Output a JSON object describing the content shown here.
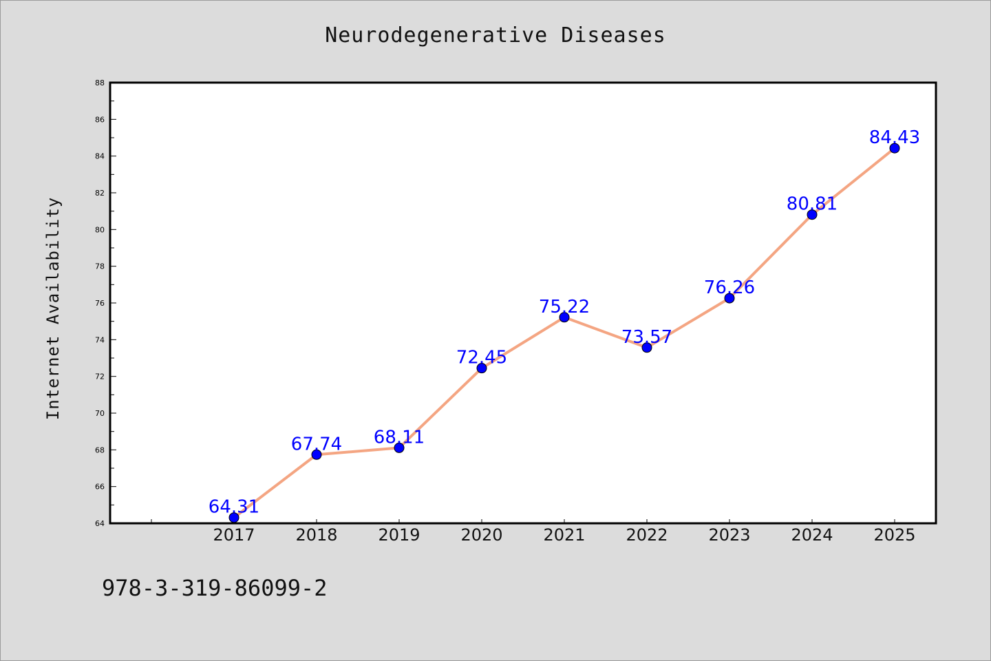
{
  "chart_data": {
    "type": "line",
    "title": "Neurodegenerative Diseases",
    "xlabel": "",
    "ylabel": "Internet Availability",
    "categories": [
      "2017",
      "2018",
      "2019",
      "2020",
      "2021",
      "2022",
      "2023",
      "2024",
      "2025"
    ],
    "series": [
      {
        "values": [
          64.31,
          67.74,
          68.11,
          72.45,
          75.22,
          73.57,
          76.26,
          80.81,
          84.43
        ],
        "labels": [
          "64.31",
          "67.74",
          "68.11",
          "72.45",
          "75.22",
          "73.57",
          "76.26",
          "80.81",
          "84.43"
        ],
        "line_color": "#f4a582",
        "marker_color": "#0000ff",
        "label_color": "#0000ff"
      }
    ],
    "ylim": [
      64,
      88
    ],
    "yticks": [
      "64",
      "66",
      "68",
      "70",
      "72",
      "74",
      "76",
      "78",
      "80",
      "82",
      "84",
      "86",
      "88"
    ],
    "grid": false,
    "background": "#dcdcdc",
    "plot_background": "#ffffff"
  },
  "footer": {
    "isbn": "978-3-319-86099-2"
  }
}
